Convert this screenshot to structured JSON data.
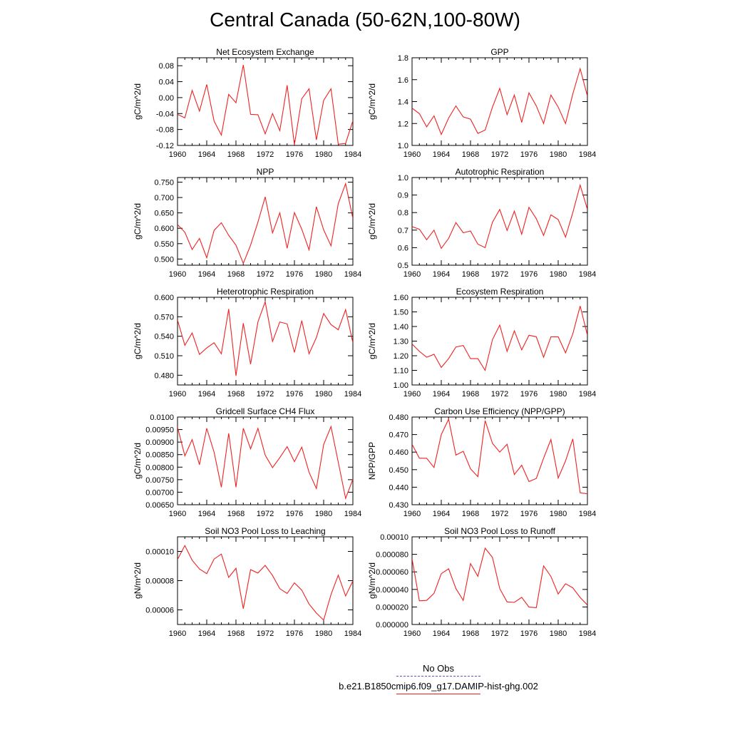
{
  "title": "Central Canada (50-62N,100-80W)",
  "legend": {
    "obs_label": "No Obs",
    "obs_color": "#5555cc",
    "model_label": "b.e21.B1850cmip6.f09_g17.DAMIP-hist-ghg.002",
    "model_color": "#ee2222"
  },
  "chart_data": [
    {
      "type": "line",
      "title": "Net Ecosystem Exchange",
      "ylabel": "gC/m^2/d",
      "xlim": [
        1960,
        1984
      ],
      "xticks": [
        "1960",
        "1964",
        "1968",
        "1972",
        "1976",
        "1980",
        "1984"
      ],
      "ylim": [
        -0.12,
        0.1
      ],
      "yticks": [
        "0.08",
        "0.04",
        "0.00",
        "-0.04",
        "-0.08",
        "-0.12"
      ],
      "x": [
        1960,
        1961,
        1962,
        1963,
        1964,
        1965,
        1966,
        1967,
        1968,
        1969,
        1970,
        1971,
        1972,
        1973,
        1974,
        1975,
        1976,
        1977,
        1978,
        1979,
        1980,
        1981,
        1982,
        1983,
        1984
      ],
      "series": [
        {
          "values": [
            -0.042,
            -0.051,
            0.018,
            -0.034,
            0.033,
            -0.059,
            -0.094,
            0.008,
            -0.013,
            0.082,
            -0.042,
            -0.043,
            -0.091,
            -0.04,
            -0.083,
            0.031,
            -0.118,
            -0.003,
            0.022,
            -0.106,
            -0.007,
            0.022,
            -0.117,
            -0.115,
            -0.058
          ]
        }
      ]
    },
    {
      "type": "line",
      "title": "GPP",
      "ylabel": "gC/m^2/d",
      "xlim": [
        1960,
        1984
      ],
      "xticks": [
        "1960",
        "1964",
        "1968",
        "1972",
        "1976",
        "1980",
        "1984"
      ],
      "ylim": [
        1.0,
        1.8
      ],
      "yticks": [
        "1.8",
        "1.6",
        "1.4",
        "1.2",
        "1.0"
      ],
      "x": [
        1960,
        1961,
        1962,
        1963,
        1964,
        1965,
        1966,
        1967,
        1968,
        1969,
        1970,
        1971,
        1972,
        1973,
        1974,
        1975,
        1976,
        1977,
        1978,
        1979,
        1980,
        1981,
        1982,
        1983,
        1984
      ],
      "series": [
        {
          "values": [
            1.34,
            1.29,
            1.17,
            1.27,
            1.1,
            1.25,
            1.36,
            1.26,
            1.24,
            1.11,
            1.14,
            1.35,
            1.52,
            1.28,
            1.46,
            1.21,
            1.48,
            1.36,
            1.2,
            1.46,
            1.35,
            1.2,
            1.47,
            1.7,
            1.45
          ]
        }
      ]
    },
    {
      "type": "line",
      "title": "NPP",
      "ylabel": "gC/m^2/d",
      "xlim": [
        1960,
        1984
      ],
      "xticks": [
        "1960",
        "1964",
        "1968",
        "1972",
        "1976",
        "1980",
        "1984"
      ],
      "ylim": [
        0.48,
        0.765
      ],
      "yticks": [
        "0.750",
        "0.700",
        "0.650",
        "0.600",
        "0.550",
        "0.500"
      ],
      "x": [
        1960,
        1961,
        1962,
        1963,
        1964,
        1965,
        1966,
        1967,
        1968,
        1969,
        1970,
        1971,
        1972,
        1973,
        1974,
        1975,
        1976,
        1977,
        1978,
        1979,
        1980,
        1981,
        1982,
        1983,
        1984
      ],
      "series": [
        {
          "values": [
            0.612,
            0.587,
            0.531,
            0.567,
            0.504,
            0.593,
            0.618,
            0.577,
            0.545,
            0.486,
            0.545,
            0.62,
            0.702,
            0.585,
            0.65,
            0.535,
            0.651,
            0.597,
            0.53,
            0.67,
            0.595,
            0.543,
            0.68,
            0.745,
            0.632
          ]
        }
      ]
    },
    {
      "type": "line",
      "title": "Autotrophic Respiration",
      "ylabel": "gC/m^2/d",
      "xlim": [
        1960,
        1984
      ],
      "xticks": [
        "1960",
        "1964",
        "1968",
        "1972",
        "1976",
        "1980",
        "1984"
      ],
      "ylim": [
        0.5,
        1.0
      ],
      "yticks": [
        "1.0",
        "0.9",
        "0.8",
        "0.7",
        "0.6",
        "0.5"
      ],
      "x": [
        1960,
        1961,
        1962,
        1963,
        1964,
        1965,
        1966,
        1967,
        1968,
        1969,
        1970,
        1971,
        1972,
        1973,
        1974,
        1975,
        1976,
        1977,
        1978,
        1979,
        1980,
        1981,
        1982,
        1983,
        1984
      ],
      "series": [
        {
          "values": [
            0.72,
            0.705,
            0.645,
            0.7,
            0.596,
            0.653,
            0.743,
            0.685,
            0.695,
            0.62,
            0.6,
            0.745,
            0.818,
            0.698,
            0.808,
            0.677,
            0.83,
            0.765,
            0.67,
            0.787,
            0.76,
            0.66,
            0.8,
            0.957,
            0.818
          ]
        }
      ]
    },
    {
      "type": "line",
      "title": "Heterotrophic Respiration",
      "ylabel": "gC/m^2/d",
      "xlim": [
        1960,
        1984
      ],
      "xticks": [
        "1960",
        "1964",
        "1968",
        "1972",
        "1976",
        "1980",
        "1984"
      ],
      "ylim": [
        0.465,
        0.6
      ],
      "yticks": [
        "0.600",
        "0.570",
        "0.540",
        "0.510",
        "0.480"
      ],
      "x": [
        1960,
        1961,
        1962,
        1963,
        1964,
        1965,
        1966,
        1967,
        1968,
        1969,
        1970,
        1971,
        1972,
        1973,
        1974,
        1975,
        1976,
        1977,
        1978,
        1979,
        1980,
        1981,
        1982,
        1983,
        1984
      ],
      "series": [
        {
          "values": [
            0.565,
            0.526,
            0.545,
            0.512,
            0.522,
            0.53,
            0.513,
            0.582,
            0.479,
            0.56,
            0.497,
            0.562,
            0.593,
            0.532,
            0.562,
            0.559,
            0.515,
            0.564,
            0.513,
            0.538,
            0.575,
            0.558,
            0.55,
            0.581,
            0.53
          ]
        }
      ]
    },
    {
      "type": "line",
      "title": "Ecosystem Respiration",
      "ylabel": "gC/m^2/d",
      "xlim": [
        1960,
        1984
      ],
      "xticks": [
        "1960",
        "1964",
        "1968",
        "1972",
        "1976",
        "1980",
        "1984"
      ],
      "ylim": [
        1.0,
        1.6
      ],
      "yticks": [
        "1.60",
        "1.50",
        "1.40",
        "1.30",
        "1.20",
        "1.10",
        "1.00"
      ],
      "x": [
        1960,
        1961,
        1962,
        1963,
        1964,
        1965,
        1966,
        1967,
        1968,
        1969,
        1970,
        1971,
        1972,
        1973,
        1974,
        1975,
        1976,
        1977,
        1978,
        1979,
        1980,
        1981,
        1982,
        1983,
        1984
      ],
      "series": [
        {
          "values": [
            1.28,
            1.23,
            1.19,
            1.21,
            1.12,
            1.18,
            1.26,
            1.27,
            1.18,
            1.18,
            1.1,
            1.31,
            1.41,
            1.23,
            1.37,
            1.24,
            1.34,
            1.33,
            1.19,
            1.33,
            1.33,
            1.22,
            1.35,
            1.54,
            1.34
          ]
        }
      ]
    },
    {
      "type": "line",
      "title": "Gridcell Surface CH4 Flux",
      "ylabel": "gC/m^2/d",
      "xlim": [
        1960,
        1984
      ],
      "xticks": [
        "1960",
        "1964",
        "1968",
        "1972",
        "1976",
        "1980",
        "1984"
      ],
      "ylim": [
        0.0065,
        0.01
      ],
      "yticks": [
        "0.0100",
        "0.00950",
        "0.00900",
        "0.00850",
        "0.00800",
        "0.00750",
        "0.00700",
        "0.00650"
      ],
      "x": [
        1960,
        1961,
        1962,
        1963,
        1964,
        1965,
        1966,
        1967,
        1968,
        1969,
        1970,
        1971,
        1972,
        1973,
        1974,
        1975,
        1976,
        1977,
        1978,
        1979,
        1980,
        1981,
        1982,
        1983,
        1984
      ],
      "series": [
        {
          "values": [
            0.0096,
            0.00845,
            0.0091,
            0.0081,
            0.00955,
            0.0086,
            0.0072,
            0.00935,
            0.0072,
            0.00955,
            0.00873,
            0.00955,
            0.00848,
            0.00798,
            0.00838,
            0.00882,
            0.00822,
            0.0088,
            0.0078,
            0.00715,
            0.0089,
            0.00962,
            0.0082,
            0.00675,
            0.00752
          ]
        }
      ]
    },
    {
      "type": "line",
      "title": "Carbon Use Efficiency (NPP/GPP)",
      "ylabel": "NPP/GPP",
      "xlim": [
        1960,
        1984
      ],
      "xticks": [
        "1960",
        "1964",
        "1968",
        "1972",
        "1976",
        "1980",
        "1984"
      ],
      "ylim": [
        0.43,
        0.48
      ],
      "yticks": [
        "0.480",
        "0.470",
        "0.460",
        "0.450",
        "0.440",
        "0.430"
      ],
      "x": [
        1960,
        1961,
        1962,
        1963,
        1964,
        1965,
        1966,
        1967,
        1968,
        1969,
        1970,
        1971,
        1972,
        1973,
        1974,
        1975,
        1976,
        1977,
        1978,
        1979,
        1980,
        1981,
        1982,
        1983,
        1984
      ],
      "series": [
        {
          "values": [
            0.4645,
            0.4565,
            0.4565,
            0.4512,
            0.47,
            0.4788,
            0.4583,
            0.4605,
            0.4505,
            0.446,
            0.478,
            0.465,
            0.46,
            0.4645,
            0.4472,
            0.4525,
            0.4432,
            0.445,
            0.4565,
            0.4672,
            0.4452,
            0.455,
            0.4675,
            0.4368,
            0.4362
          ]
        }
      ]
    },
    {
      "type": "line",
      "title": "Soil NO3 Pool Loss to Leaching",
      "ylabel": "gN/m^2/d",
      "xlim": [
        1960,
        1984
      ],
      "xticks": [
        "1960",
        "1964",
        "1968",
        "1972",
        "1976",
        "1980",
        "1984"
      ],
      "ylim": [
        5e-05,
        0.00011
      ],
      "yticks": [
        "0.00010",
        "0.00008",
        "0.00006"
      ],
      "x": [
        1960,
        1961,
        1962,
        1963,
        1964,
        1965,
        1966,
        1967,
        1968,
        1969,
        1970,
        1971,
        1972,
        1973,
        1974,
        1975,
        1976,
        1977,
        1978,
        1979,
        1980,
        1981,
        1982,
        1983,
        1984
      ],
      "series": [
        {
          "values": [
            9.45e-05,
            0.000104,
            9.4e-05,
            8.8e-05,
            8.48e-05,
            9.48e-05,
            9.82e-05,
            8.22e-05,
            8.85e-05,
            6.08e-05,
            8.75e-05,
            8.52e-05,
            9.05e-05,
            8.35e-05,
            7.45e-05,
            7.12e-05,
            7.85e-05,
            7.35e-05,
            6.4e-05,
            5.78e-05,
            5.3e-05,
            7.05e-05,
            8.38e-05,
            6.95e-05,
            7.98e-05
          ]
        }
      ]
    },
    {
      "type": "line",
      "title": "Soil NO3 Pool Loss to Runoff",
      "ylabel": "gN/m^2/d",
      "xlim": [
        1960,
        1984
      ],
      "xticks": [
        "1960",
        "1964",
        "1968",
        "1972",
        "1976",
        "1980",
        "1984"
      ],
      "ylim": [
        0.0,
        0.0001
      ],
      "yticks": [
        "0.00010",
        "0.000080",
        "0.000060",
        "0.000040",
        "0.000020",
        "0.000000"
      ],
      "x": [
        1960,
        1961,
        1962,
        1963,
        1964,
        1965,
        1966,
        1967,
        1968,
        1969,
        1970,
        1971,
        1972,
        1973,
        1974,
        1975,
        1976,
        1977,
        1978,
        1979,
        1980,
        1981,
        1982,
        1983,
        1984
      ],
      "series": [
        {
          "values": [
            7.5e-05,
            2.7e-05,
            2.75e-05,
            3.55e-05,
            5.8e-05,
            6.35e-05,
            4.1e-05,
            2.75e-05,
            6.95e-05,
            5.5e-05,
            8.7e-05,
            7.65e-05,
            4.1e-05,
            2.58e-05,
            2.52e-05,
            3.1e-05,
            1.98e-05,
            1.92e-05,
            6.68e-05,
            5.48e-05,
            3.48e-05,
            4.65e-05,
            4.18e-05,
            3.08e-05,
            2.22e-05
          ]
        }
      ]
    }
  ]
}
